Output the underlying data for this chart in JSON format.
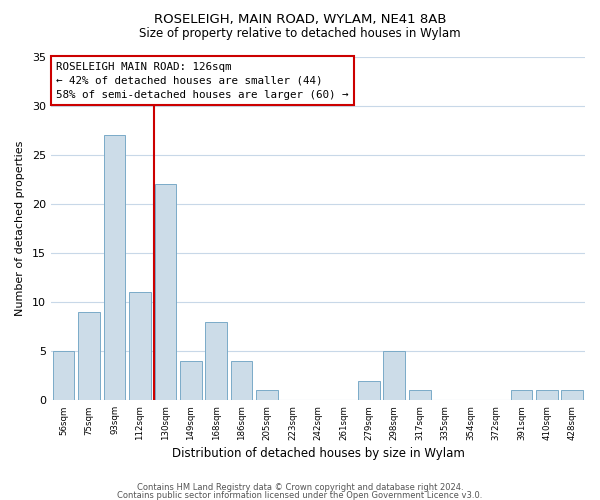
{
  "title": "ROSELEIGH, MAIN ROAD, WYLAM, NE41 8AB",
  "subtitle": "Size of property relative to detached houses in Wylam",
  "xlabel": "Distribution of detached houses by size in Wylam",
  "ylabel": "Number of detached properties",
  "bar_color": "#ccdce8",
  "bar_edge_color": "#7aaac8",
  "background_color": "#ffffff",
  "grid_color": "#c8d8e8",
  "vline_color": "#cc0000",
  "annotation_line1": "ROSELEIGH MAIN ROAD: 126sqm",
  "annotation_line2": "← 42% of detached houses are smaller (44)",
  "annotation_line3": "58% of semi-detached houses are larger (60) →",
  "annotation_box_color": "#ffffff",
  "annotation_box_edge": "#cc0000",
  "categories": [
    "56sqm",
    "75sqm",
    "93sqm",
    "112sqm",
    "130sqm",
    "149sqm",
    "168sqm",
    "186sqm",
    "205sqm",
    "223sqm",
    "242sqm",
    "261sqm",
    "279sqm",
    "298sqm",
    "317sqm",
    "335sqm",
    "354sqm",
    "372sqm",
    "391sqm",
    "410sqm",
    "428sqm"
  ],
  "values": [
    5,
    9,
    27,
    11,
    22,
    4,
    8,
    4,
    1,
    0,
    0,
    0,
    2,
    5,
    1,
    0,
    0,
    0,
    1,
    1,
    1
  ],
  "ylim": [
    0,
    35
  ],
  "yticks": [
    0,
    5,
    10,
    15,
    20,
    25,
    30,
    35
  ],
  "vline_index": 4,
  "footer_line1": "Contains HM Land Registry data © Crown copyright and database right 2024.",
  "footer_line2": "Contains public sector information licensed under the Open Government Licence v3.0."
}
